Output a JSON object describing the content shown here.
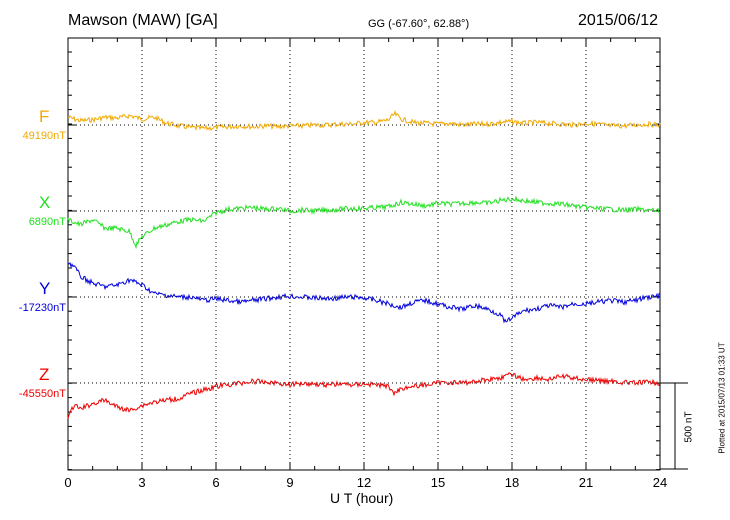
{
  "header": {
    "station": "Mawson (MAW)  [GA]",
    "coords": "GG (-67.60°,  62.88°)",
    "date": "2015/06/12"
  },
  "footer": {
    "plotted": "Plotted at 2015/07/13 01:33 UT"
  },
  "chart_data": {
    "type": "line",
    "xlabel": "U T (hour)",
    "xlim": [
      0,
      24
    ],
    "xticks": [
      "0",
      "3",
      "6",
      "9",
      "12",
      "15",
      "18",
      "21",
      "24"
    ],
    "scale_bar": {
      "value": 500,
      "label": "500 nT"
    },
    "series": [
      {
        "name": "F",
        "baseline_label": "49190nT",
        "color": "#f2a900",
        "x": [
          0,
          0.5,
          1,
          1.5,
          2,
          2.5,
          3,
          3.5,
          4,
          4.5,
          5,
          5.5,
          6,
          6.5,
          7,
          7.5,
          8,
          8.5,
          9,
          9.5,
          10,
          10.5,
          11,
          11.5,
          12,
          12.5,
          13,
          13.25,
          13.5,
          14,
          14.5,
          15,
          15.5,
          16,
          16.5,
          17,
          17.5,
          18,
          18.5,
          19,
          19.5,
          20,
          20.5,
          21,
          21.5,
          22,
          22.5,
          23,
          23.5,
          24
        ],
        "y": [
          45,
          25,
          30,
          45,
          40,
          55,
          35,
          45,
          10,
          -5,
          -15,
          -20,
          -15,
          -10,
          -5,
          -10,
          -5,
          -10,
          -5,
          -5,
          0,
          0,
          5,
          5,
          15,
          15,
          30,
          65,
          35,
          15,
          10,
          5,
          10,
          0,
          5,
          5,
          15,
          20,
          10,
          15,
          10,
          5,
          0,
          10,
          5,
          -5,
          -5,
          0,
          5,
          0
        ]
      },
      {
        "name": "X",
        "baseline_label": "6890nT",
        "color": "#22e022",
        "x": [
          0,
          0.5,
          1,
          1.5,
          2,
          2.5,
          2.75,
          3,
          3.5,
          4,
          4.5,
          5,
          5.5,
          6,
          6.5,
          7,
          7.5,
          8,
          8.5,
          9,
          9.5,
          10,
          10.5,
          11,
          11.5,
          12,
          12.5,
          13,
          13.5,
          14,
          14.5,
          15,
          15.5,
          16,
          16.5,
          17,
          17.5,
          18,
          18.5,
          19,
          19.5,
          20,
          20.5,
          21,
          21.5,
          22,
          22.5,
          23,
          23.5,
          24
        ],
        "y": [
          -50,
          -80,
          -50,
          -100,
          -100,
          -120,
          -200,
          -150,
          -100,
          -80,
          -60,
          -50,
          -60,
          -10,
          10,
          15,
          20,
          10,
          15,
          0,
          5,
          0,
          5,
          10,
          15,
          15,
          20,
          25,
          50,
          40,
          30,
          45,
          40,
          45,
          50,
          45,
          60,
          70,
          60,
          50,
          45,
          40,
          30,
          20,
          15,
          10,
          5,
          10,
          5,
          0
        ]
      },
      {
        "name": "Y",
        "baseline_label": "-17230nT",
        "color": "#0000dd",
        "x": [
          0,
          0.25,
          0.5,
          1,
          1.5,
          2,
          2.5,
          3,
          3.5,
          4,
          4.5,
          5,
          5.5,
          6,
          6.5,
          7,
          7.5,
          8,
          8.5,
          9,
          9.5,
          10,
          10.5,
          11,
          11.5,
          12,
          12.5,
          13,
          13.5,
          14,
          14.5,
          15,
          15.5,
          16,
          16.5,
          17,
          17.5,
          17.75,
          18,
          18.5,
          19,
          19.5,
          20,
          20.5,
          21,
          21.5,
          22,
          22.5,
          23,
          23.5,
          24
        ],
        "y": [
          200,
          180,
          120,
          80,
          60,
          70,
          100,
          70,
          20,
          10,
          0,
          0,
          -20,
          -10,
          -20,
          -30,
          -20,
          -10,
          0,
          5,
          0,
          -5,
          -10,
          -5,
          0,
          -5,
          -20,
          -40,
          -60,
          -30,
          -20,
          -40,
          -60,
          -70,
          -50,
          -70,
          -100,
          -150,
          -120,
          -80,
          -70,
          -50,
          -60,
          -40,
          -40,
          -30,
          -20,
          -30,
          -20,
          0,
          5
        ]
      },
      {
        "name": "Z",
        "baseline_label": "-45550nT",
        "color": "#ee0000",
        "x": [
          0,
          0.25,
          0.5,
          1,
          1.5,
          2,
          2.5,
          3,
          3.5,
          4,
          4.5,
          5,
          5.5,
          6,
          6.5,
          7,
          7.5,
          8,
          8.5,
          9,
          9.5,
          10,
          10.5,
          11,
          11.5,
          12,
          12.5,
          13,
          13.25,
          13.5,
          14,
          14.5,
          15,
          15.5,
          16,
          16.5,
          17,
          17.5,
          18,
          18.5,
          19,
          19.5,
          20,
          20.5,
          21,
          21.5,
          22,
          22.5,
          23,
          23.5,
          24
        ],
        "y": [
          -200,
          -130,
          -150,
          -120,
          -100,
          -140,
          -160,
          -130,
          -110,
          -100,
          -90,
          -60,
          -40,
          -20,
          -10,
          0,
          10,
          5,
          0,
          -10,
          0,
          -5,
          -10,
          -5,
          -10,
          -5,
          -10,
          -20,
          -60,
          -30,
          -20,
          -10,
          0,
          5,
          0,
          10,
          20,
          30,
          50,
          20,
          30,
          20,
          40,
          30,
          20,
          15,
          10,
          5,
          0,
          5,
          0
        ]
      }
    ]
  }
}
